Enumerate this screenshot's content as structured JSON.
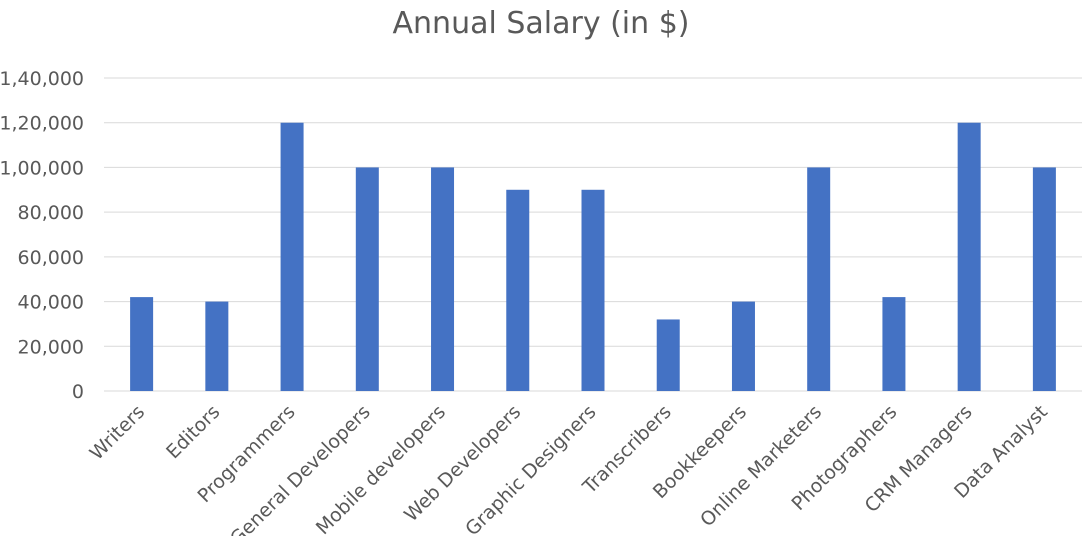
{
  "chart_data": {
    "type": "bar",
    "title": "Annual Salary (in $)",
    "categories": [
      "Writers",
      "Editors",
      "Programmers",
      "General Developers",
      "Mobile developers",
      "Web Developers",
      "Graphic Designers",
      "Transcribers",
      "Bookkeepers",
      "Online Marketers",
      "Photographers",
      "CRM Managers",
      "Data Analyst"
    ],
    "values": [
      42000,
      40000,
      120000,
      100000,
      100000,
      90000,
      90000,
      32000,
      40000,
      100000,
      42000,
      120000,
      100000
    ],
    "ylim": [
      0,
      140000
    ],
    "yticks": [
      0,
      20000,
      40000,
      60000,
      80000,
      100000,
      120000,
      140000
    ],
    "ytick_labels": [
      "0",
      "20,000",
      "40,000",
      "60,000",
      "80,000",
      "1,00,000",
      "1,20,000",
      "1,40,000"
    ],
    "xlabel": "",
    "ylabel": "",
    "grid": true,
    "legend": "none",
    "bar_color": "#4472c4"
  }
}
